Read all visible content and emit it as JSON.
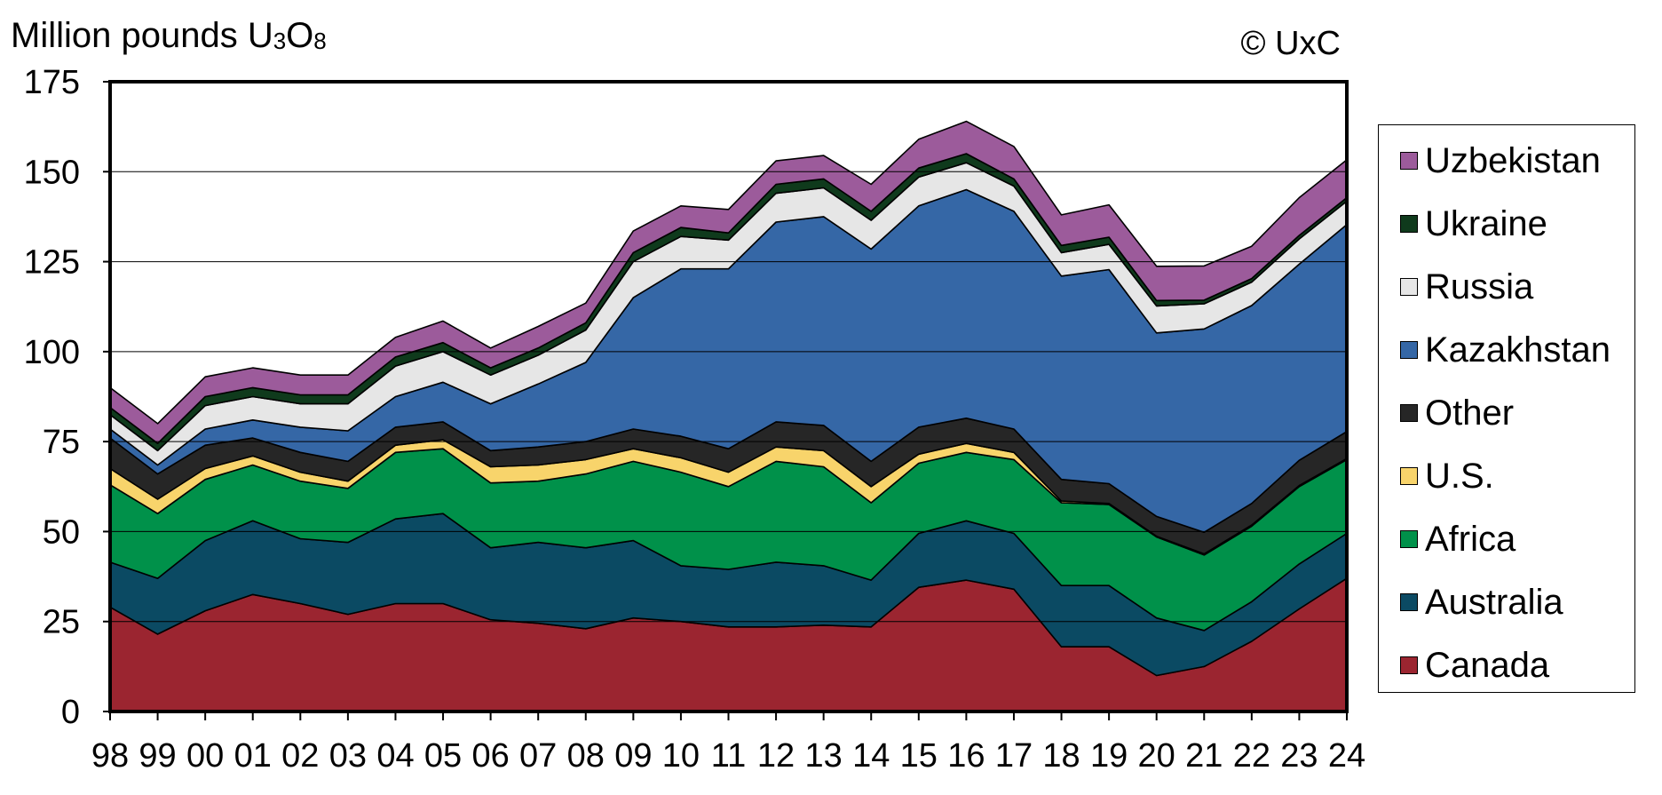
{
  "chart_data": {
    "type": "area",
    "stacked": true,
    "title": "",
    "ylabel_prefix": "Million pounds U",
    "ylabel_sub1": "3",
    "ylabel_mid": "O",
    "ylabel_sub2": "8",
    "copyright": "© UxC",
    "ylim": [
      0,
      175
    ],
    "yticks": [
      "0",
      "25",
      "50",
      "75",
      "100",
      "125",
      "150",
      "175"
    ],
    "grid": "horizontal",
    "legend_position": "right",
    "x": [
      "98",
      "99",
      "00",
      "01",
      "02",
      "03",
      "04",
      "05",
      "06",
      "07",
      "08",
      "09",
      "10",
      "11",
      "12",
      "13",
      "14",
      "15",
      "16",
      "17",
      "18",
      "19",
      "20",
      "21",
      "22",
      "23",
      "24"
    ],
    "series": [
      {
        "name": "Canada",
        "color": "#9b2530",
        "values": [
          29,
          21.5,
          28,
          32.5,
          30,
          27,
          30,
          30,
          25.5,
          24.5,
          23,
          26,
          25,
          23.5,
          23.5,
          24,
          23.5,
          34.5,
          36.5,
          34,
          18,
          18,
          10,
          12.5,
          19.5,
          28.5,
          37
        ]
      },
      {
        "name": "Australia",
        "color": "#0b4a63",
        "values": [
          12.5,
          15.5,
          19.5,
          20.5,
          18,
          20,
          23.5,
          25,
          20,
          22.5,
          22.5,
          21.5,
          15.5,
          16,
          18,
          16.5,
          13,
          15,
          16.5,
          15.5,
          17,
          17,
          16,
          10,
          11,
          12.5,
          12.5
        ]
      },
      {
        "name": "Africa",
        "color": "#00914a",
        "values": [
          21.5,
          18,
          17,
          15.5,
          16,
          15,
          18.5,
          18,
          18,
          17,
          20.5,
          22,
          26,
          23,
          28,
          27.5,
          21.5,
          19.5,
          19,
          20.5,
          23,
          22.5,
          22.5,
          21,
          21,
          21.5,
          20.5
        ]
      },
      {
        "name": "U.S.",
        "color": "#f8d46b",
        "values": [
          4.5,
          4,
          3,
          2.5,
          2.5,
          2,
          2,
          2.5,
          4.5,
          4.5,
          4,
          3.5,
          4,
          4,
          4,
          4.5,
          4.5,
          2.5,
          2.5,
          2,
          0.5,
          0.3,
          0.2,
          0.3,
          0.3,
          0.3,
          0.3
        ]
      },
      {
        "name": "Other",
        "color": "#262626",
        "values": [
          8.5,
          7,
          6.5,
          5,
          5.5,
          5.5,
          5,
          5,
          4.5,
          5,
          5,
          5.5,
          6,
          6.5,
          7,
          7,
          7,
          7.5,
          7,
          6.5,
          6,
          5.5,
          5.5,
          6,
          6,
          7,
          7.5
        ]
      },
      {
        "name": "Kazakhstan",
        "color": "#3567a6",
        "values": [
          2.5,
          2.5,
          4.5,
          5,
          7,
          8.5,
          8.5,
          11,
          13,
          17.5,
          22,
          36.5,
          46.5,
          50,
          55.5,
          58,
          59,
          61.5,
          63.5,
          60.5,
          56.5,
          59.5,
          51,
          56.5,
          55,
          54.5,
          57.5
        ]
      },
      {
        "name": "Russia",
        "color": "#e6e6e6",
        "values": [
          4,
          4,
          6.5,
          6.5,
          6.5,
          7.5,
          8.5,
          8.5,
          8,
          8,
          9,
          10,
          9,
          8,
          8,
          8,
          8,
          8,
          7.5,
          7,
          6.5,
          7,
          7.5,
          7,
          6.5,
          7,
          6.5
        ]
      },
      {
        "name": "Ukraine",
        "color": "#0f3a1c",
        "values": [
          2,
          2,
          2.5,
          2.5,
          2.5,
          2.5,
          2.5,
          2.5,
          2,
          2,
          2,
          2.5,
          2.5,
          2,
          2.5,
          2.5,
          2.5,
          2.5,
          2.5,
          2,
          2,
          2,
          1.5,
          1,
          1,
          1,
          1
        ]
      },
      {
        "name": "Uzbekistan",
        "color": "#9c5b9b",
        "values": [
          5.5,
          5.5,
          5.5,
          5.5,
          5.5,
          5.5,
          5.5,
          6,
          5.5,
          6,
          5.5,
          6,
          6,
          6.5,
          6.5,
          6.5,
          7.5,
          8,
          9,
          9,
          8.5,
          9,
          9.5,
          9.5,
          9,
          10.5,
          10.5
        ]
      }
    ]
  }
}
